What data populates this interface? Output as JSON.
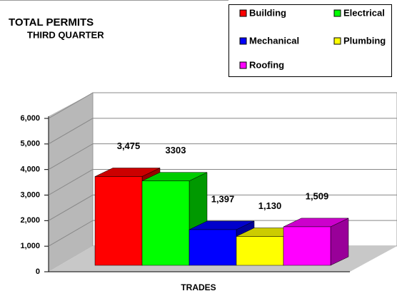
{
  "chart_data": {
    "type": "bar3d",
    "title": "TOTAL PERMITS",
    "subtitle": "THIRD QUARTER",
    "x_label": "TRADES",
    "series": [
      {
        "name": "Building",
        "color": "#ff0000",
        "values": [
          3475
        ],
        "value_labels": [
          "3,475"
        ]
      },
      {
        "name": "Electrical",
        "color": "#00ff00",
        "values": [
          3303
        ],
        "value_labels": [
          "3303"
        ]
      },
      {
        "name": "Mechanical",
        "color": "#0000ff",
        "values": [
          1397
        ],
        "value_labels": [
          "1,397"
        ]
      },
      {
        "name": "Plumbing",
        "color": "#ffff00",
        "values": [
          1130
        ],
        "value_labels": [
          "1,130"
        ]
      },
      {
        "name": "Roofing",
        "color": "#ff00ff",
        "values": [
          1509
        ],
        "value_labels": [
          "1,509"
        ]
      }
    ],
    "ylim": [
      0,
      6000
    ],
    "yticks": [
      0,
      {
        "value": 1000,
        "label": "1,000"
      },
      {
        "value": 2000,
        "label": "2,000"
      },
      {
        "value": 3000,
        "label": "3,000"
      },
      {
        "value": 4000,
        "label": "4,000"
      },
      {
        "value": 5000,
        "label": "5,000"
      },
      {
        "value": 6000,
        "label": "6,000"
      }
    ],
    "grid": true
  }
}
